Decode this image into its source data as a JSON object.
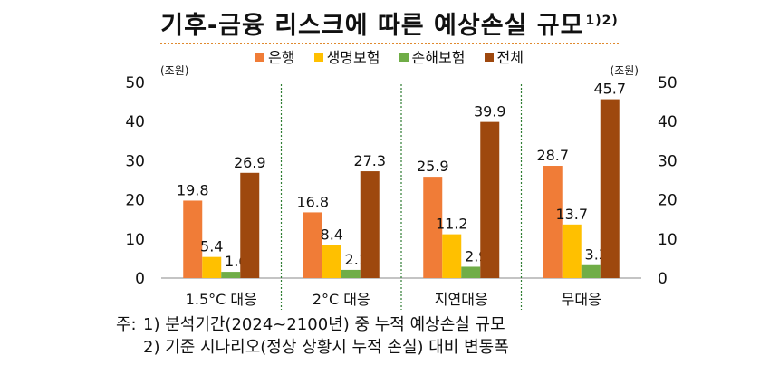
{
  "title": "기후-금융 리스크에 따른 예상손실 규모",
  "title_sup": "1)2)",
  "colors": {
    "bank": "#f07c37",
    "life": "#ffc000",
    "nonlife": "#70ad47",
    "total": "#9e480e"
  },
  "chart_data": {
    "type": "bar",
    "categories": [
      "1.5°C 대응",
      "2°C 대응",
      "지연대응",
      "무대응"
    ],
    "series": [
      {
        "name": "은행",
        "values": [
          19.8,
          16.8,
          25.9,
          28.7
        ]
      },
      {
        "name": "생명보험",
        "values": [
          5.4,
          8.4,
          11.2,
          13.7
        ]
      },
      {
        "name": "손해보험",
        "values": [
          1.6,
          2.1,
          2.9,
          3.3
        ]
      },
      {
        "name": "전체",
        "values": [
          26.9,
          27.3,
          39.9,
          45.7
        ]
      }
    ],
    "data_labels": [
      [
        "19.8",
        "5.4",
        "1.6",
        "26.9"
      ],
      [
        "16.8",
        "8.4",
        "2.1",
        "27.3"
      ],
      [
        "25.9",
        "11.2",
        "2.9",
        "39.9"
      ],
      [
        "28.7",
        "13.7",
        "3.3",
        "45.7"
      ]
    ],
    "ylim": [
      0,
      50
    ],
    "yticks": [
      0,
      10,
      20,
      30,
      40,
      50
    ],
    "ytick_labels": [
      "0",
      "10",
      "20",
      "30",
      "40",
      "50"
    ],
    "y_unit_left": "(조원)",
    "y_unit_right": "(조원)",
    "legend_position": "top"
  },
  "notes": {
    "prefix": "주:",
    "items": [
      "1) 분석기간(2024~2100년) 중 누적 예상손실 규모",
      "2) 기준 시나리오(정상 상황시 누적 손실) 대비 변동폭"
    ]
  }
}
